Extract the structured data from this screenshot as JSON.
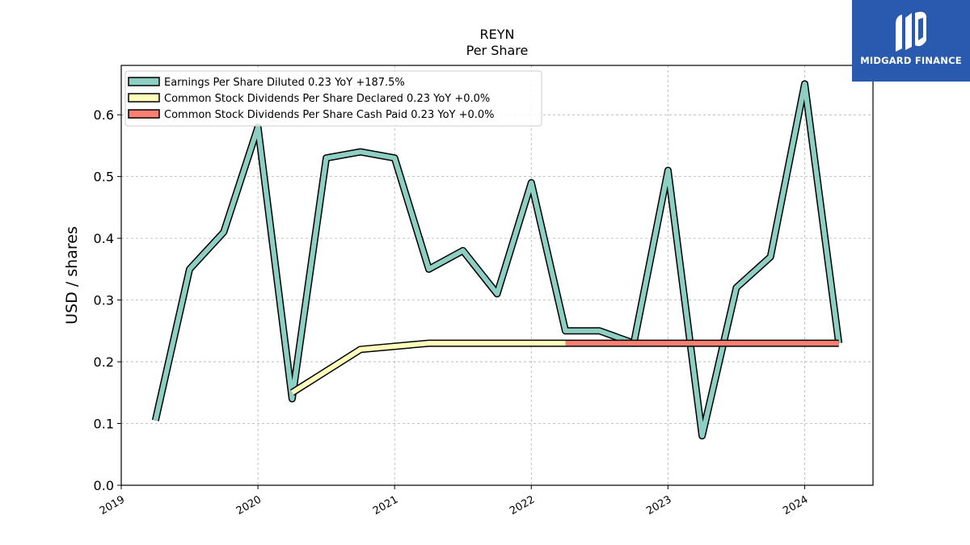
{
  "chart_data": {
    "type": "line",
    "title": "REYN",
    "subtitle": "Per  Share",
    "ylabel": "USD / shares",
    "xlabel": "",
    "ylim": [
      0.0,
      0.68
    ],
    "xlim": [
      2019.0,
      2024.5
    ],
    "yticks": [
      "0.0",
      "0.1",
      "0.2",
      "0.3",
      "0.4",
      "0.5",
      "0.6"
    ],
    "yticks_values": [
      0.0,
      0.1,
      0.2,
      0.3,
      0.4,
      0.5,
      0.6
    ],
    "xticks": [
      "2019",
      "2020",
      "2021",
      "2022",
      "2023",
      "2024"
    ],
    "xticks_values": [
      2019,
      2020,
      2021,
      2022,
      2023,
      2024
    ],
    "grid": true,
    "legend_position": "top-left",
    "series": [
      {
        "name": "Earnings Per Share Diluted  0.23 YoY +187.5%",
        "color": "#8ecfc4",
        "x": [
          2019.25,
          2019.5,
          2019.75,
          2020.0,
          2020.25,
          2020.5,
          2020.75,
          2021.0,
          2021.25,
          2021.5,
          2021.75,
          2022.0,
          2022.25,
          2022.5,
          2022.75,
          2023.0,
          2023.25,
          2023.5,
          2023.75,
          2024.0,
          2024.25
        ],
        "values": [
          0.105,
          0.35,
          0.41,
          0.58,
          0.14,
          0.53,
          0.54,
          0.53,
          0.35,
          0.38,
          0.31,
          0.49,
          0.25,
          0.25,
          0.23,
          0.51,
          0.08,
          0.32,
          0.37,
          0.65,
          0.23
        ]
      },
      {
        "name": "Common Stock Dividends Per Share Declared  0.23 YoY +0.0%",
        "color": "#ffffbb",
        "x": [
          2020.25,
          2020.75,
          2021.25,
          2021.5,
          2021.75,
          2022.0,
          2022.25
        ],
        "values": [
          0.15,
          0.22,
          0.23,
          0.23,
          0.23,
          0.23,
          0.23
        ]
      },
      {
        "name": "Common Stock Dividends Per Share Cash Paid  0.23 YoY +0.0%",
        "color": "#f98072",
        "x": [
          2022.25,
          2022.5,
          2022.75,
          2023.0,
          2023.25,
          2023.5,
          2023.75,
          2024.0,
          2024.25
        ],
        "values": [
          0.23,
          0.23,
          0.23,
          0.23,
          0.23,
          0.23,
          0.23,
          0.23,
          0.23
        ]
      }
    ]
  },
  "logo": {
    "text": "MIDGARD FINANCE"
  }
}
